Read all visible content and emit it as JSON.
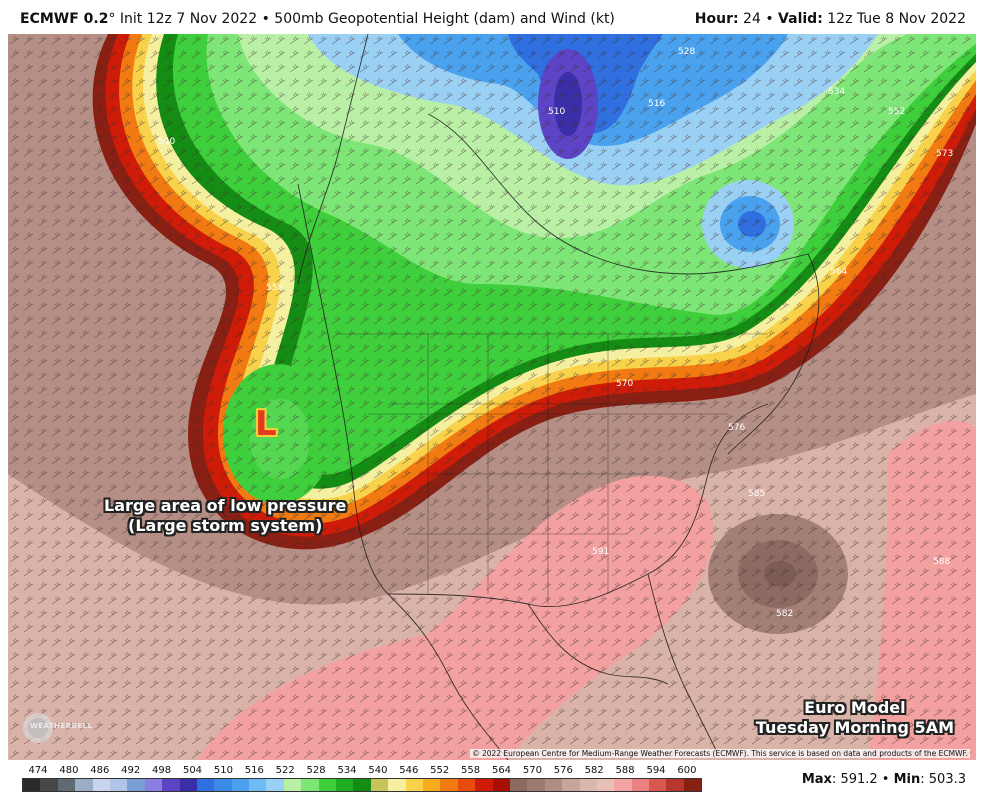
{
  "header": {
    "model": "ECMWF 0.2",
    "degree_symbol": "°",
    "init_text": "Init 12z 7 Nov 2022",
    "separator": "•",
    "product": "500mb Geopotential Height (dam) and Wind (kt)",
    "hour_label": "Hour",
    "hour_value": "24",
    "valid_label": "Valid",
    "valid_value": "12z Tue 8 Nov 2022"
  },
  "annotations": {
    "low_symbol": "L",
    "low_line1": "Large area of low pressure",
    "low_line2": "(Large storm system)",
    "model_line1": "Euro Model",
    "model_line2": "Tuesday Morning 5AM"
  },
  "contour_labels": [
    "510",
    "516",
    "528",
    "534",
    "540",
    "552",
    "558",
    "564",
    "570",
    "573",
    "576",
    "582",
    "585",
    "588",
    "591"
  ],
  "copyright": "© 2022 European Centre for Medium-Range Weather Forecasts (ECMWF). This service is based on data and products of the ECMWF.",
  "logo_text": "WEATHERBELL",
  "colorbar": {
    "labels": [
      "474",
      "480",
      "486",
      "492",
      "498",
      "504",
      "510",
      "516",
      "522",
      "528",
      "534",
      "540",
      "546",
      "552",
      "558",
      "564",
      "570",
      "576",
      "582",
      "588",
      "594",
      "600"
    ],
    "colors": [
      "#2b2b2b",
      "#474747",
      "#5f6a73",
      "#9aaec8",
      "#c8d4ee",
      "#b0c4e8",
      "#7a9fd4",
      "#8a7fe0",
      "#5d44c6",
      "#3a2fa6",
      "#2f6fe0",
      "#3b8ae8",
      "#4aa2ef",
      "#6fbcf5",
      "#9bd0f5",
      "#b9f0a6",
      "#7ee677",
      "#3fcf3c",
      "#1fae1f",
      "#158d15",
      "#c8c45c",
      "#f5f0a0",
      "#f8d24a",
      "#f6aa1c",
      "#f27a12",
      "#e94b0d",
      "#cf1c08",
      "#a80f05",
      "#8c6a5f",
      "#9c7a70",
      "#b08c82",
      "#c6a59b",
      "#d8b7ad",
      "#e9c0b8",
      "#f4a3a3",
      "#ec7f7f",
      "#d8574f",
      "#b8372c",
      "#8a1f14"
    ],
    "unit": "dam"
  },
  "stats": {
    "max_label": "Max",
    "max_value": "591.2",
    "min_label": "Min",
    "min_value": "503.3",
    "separator": "•"
  }
}
